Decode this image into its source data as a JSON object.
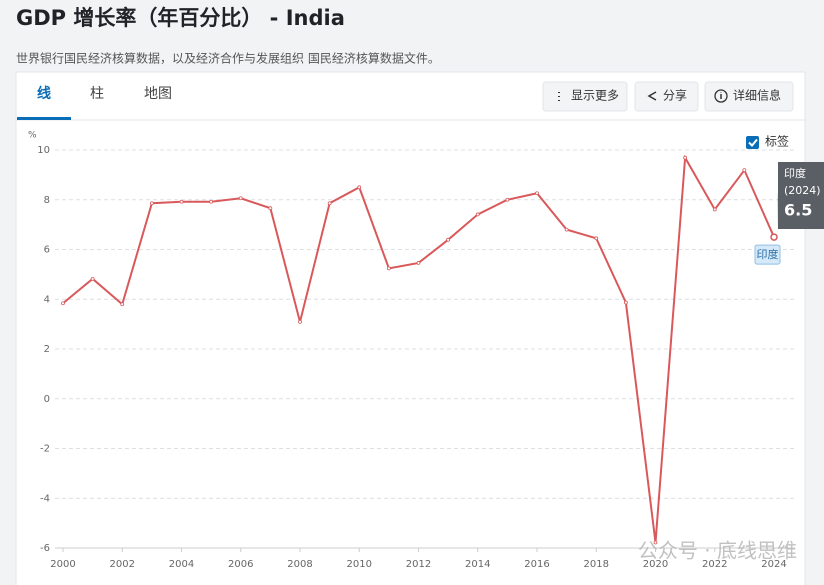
{
  "header": {
    "title": "GDP 增长率（年百分比） - India",
    "subtitle": "世界银行国民经济核算数据，以及经济合作与发展组织 国民经济核算数据文件。"
  },
  "tabs": [
    "线",
    "柱",
    "地图"
  ],
  "buttons": [
    "显示更多",
    "分享",
    "详细信息"
  ],
  "chart_data": {
    "type": "line",
    "unit": "%",
    "x": [
      2000,
      2001,
      2002,
      2003,
      2004,
      2005,
      2006,
      2007,
      2008,
      2009,
      2010,
      2011,
      2012,
      2013,
      2014,
      2015,
      2016,
      2017,
      2018,
      2019,
      2020,
      2021,
      2022,
      2023,
      2024
    ],
    "xlim": [
      2000,
      2024
    ],
    "xticks": [
      2000,
      2002,
      2004,
      2006,
      2008,
      2010,
      2012,
      2014,
      2016,
      2018,
      2020,
      2022,
      2024
    ],
    "ylim": [
      -6,
      10
    ],
    "yticks": [
      -6,
      -4,
      -2,
      0,
      2,
      4,
      6,
      8,
      10
    ],
    "grid": true,
    "series": [
      {
        "name": "印度",
        "color": "#d9595b",
        "values": [
          3.84,
          4.82,
          3.8,
          7.86,
          7.92,
          7.92,
          8.06,
          7.66,
          3.09,
          7.86,
          8.5,
          5.24,
          5.46,
          6.39,
          7.41,
          8.0,
          8.26,
          6.8,
          6.45,
          3.87,
          -5.78,
          9.69,
          7.61,
          9.19,
          6.5
        ]
      }
    ],
    "legend_label": "标签",
    "tooltip": {
      "period": "(2024)"
    }
  },
  "watermark": "公众号 · 底线思维"
}
